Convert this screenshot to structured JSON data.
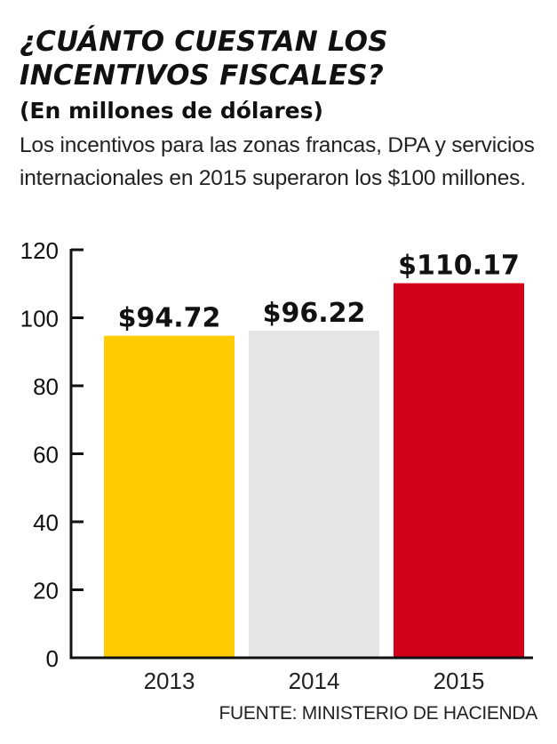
{
  "header": {
    "title": "¿CUÁNTO CUESTAN LOS INCENTIVOS FISCALES?",
    "subtitle": "(En millones de dólares)",
    "description": "Los incentivos para las zonas francas, DPA y servicios internacionales en 2015 superaron los $100 millones."
  },
  "source": "FUENTE: MINISTERIO DE HACIENDA",
  "chart_data": {
    "type": "bar",
    "title": "¿CUÁNTO CUESTAN LOS INCENTIVOS FISCALES?",
    "subtitle": "(En millones de dólares)",
    "categories": [
      "2013",
      "2014",
      "2015"
    ],
    "values": [
      94.72,
      96.22,
      110.17
    ],
    "data_labels": [
      "$94.72",
      "$96.22",
      "$110.17"
    ],
    "bar_colors": [
      "#FFCC00",
      "#E6E6E6",
      "#D30019"
    ],
    "xlabel": "",
    "ylabel": "",
    "ylim": [
      0,
      120
    ],
    "y_ticks": [
      0,
      20,
      40,
      60,
      80,
      100,
      120
    ],
    "grid": false,
    "legend": "none"
  }
}
